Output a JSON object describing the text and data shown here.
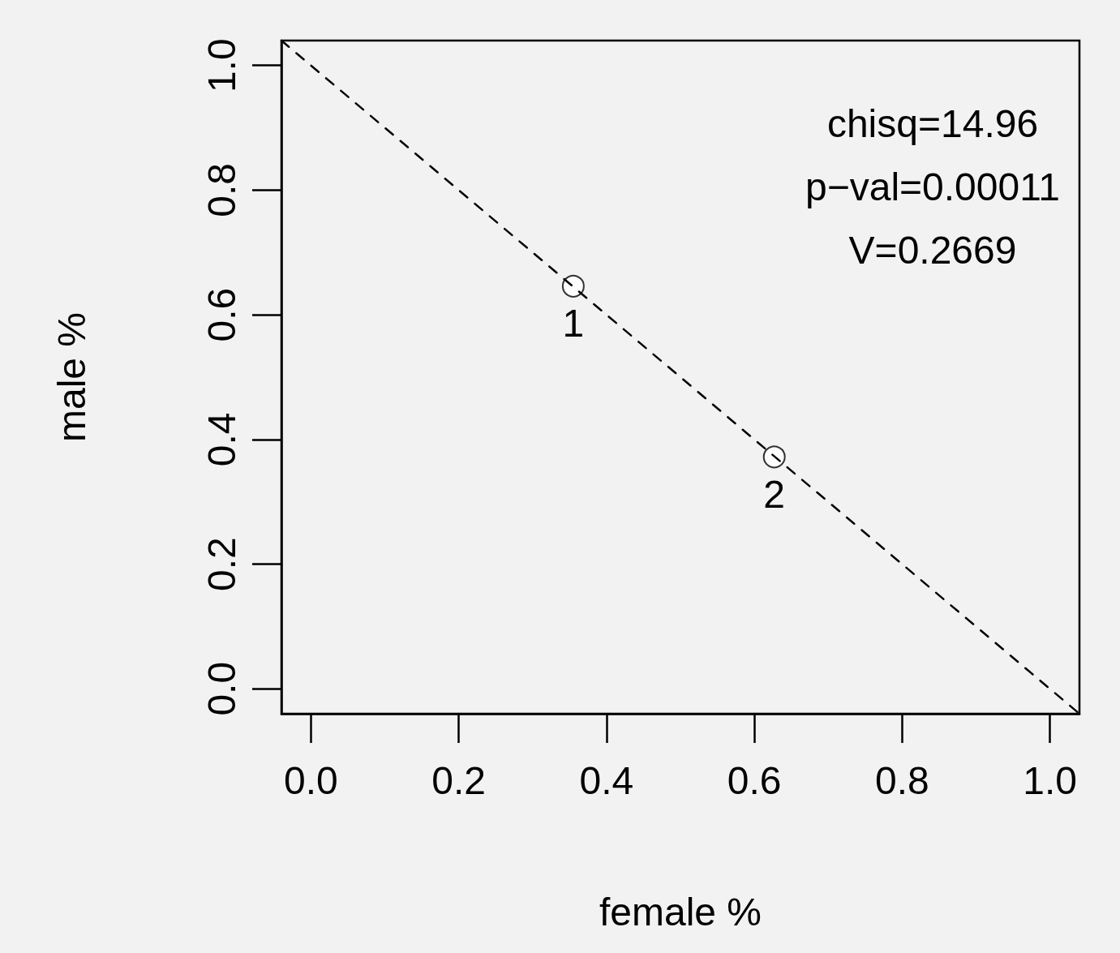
{
  "chart_data": {
    "type": "scatter",
    "xlabel": "female %",
    "ylabel": "male %",
    "annotations": [
      "chisq=14.96",
      "p−val=0.00011",
      "V=0.2669",
      {
        "text": "1",
        "x": 0.355,
        "y": 0.646
      },
      {
        "text": "2",
        "x": 0.627,
        "y": 0.372
      }
    ],
    "xlim": [
      -0.04,
      1.04
    ],
    "ylim": [
      -0.04,
      1.04
    ],
    "xticks": [
      {
        "value": 0,
        "label": "0.0"
      },
      {
        "value": 0.2,
        "label": "0.2"
      },
      {
        "value": 0.4,
        "label": "0.4"
      },
      {
        "value": 0.6,
        "label": "0.6"
      },
      {
        "value": 0.8,
        "label": "0.8"
      },
      {
        "value": 1,
        "label": "1.0"
      }
    ],
    "yticks": [
      {
        "value": 0,
        "label": "0.0"
      },
      {
        "value": 0.2,
        "label": "0.2"
      },
      {
        "value": 0.4,
        "label": "0.4"
      },
      {
        "value": 0.6,
        "label": "0.6"
      },
      {
        "value": 0.8,
        "label": "0.8"
      },
      {
        "value": 1,
        "label": "1.0"
      }
    ],
    "grid": false,
    "marker": "circle",
    "series": [
      {
        "color": "#000000",
        "x": [
          0.355,
          0.627
        ],
        "values": [
          0.646,
          0.372
        ]
      },
      {
        "type": "line",
        "color": "#000000",
        "line_style": "dashed",
        "marker": "none",
        "x": [
          -0.04,
          1.04
        ],
        "values": [
          1.04,
          -0.04
        ]
      }
    ]
  }
}
